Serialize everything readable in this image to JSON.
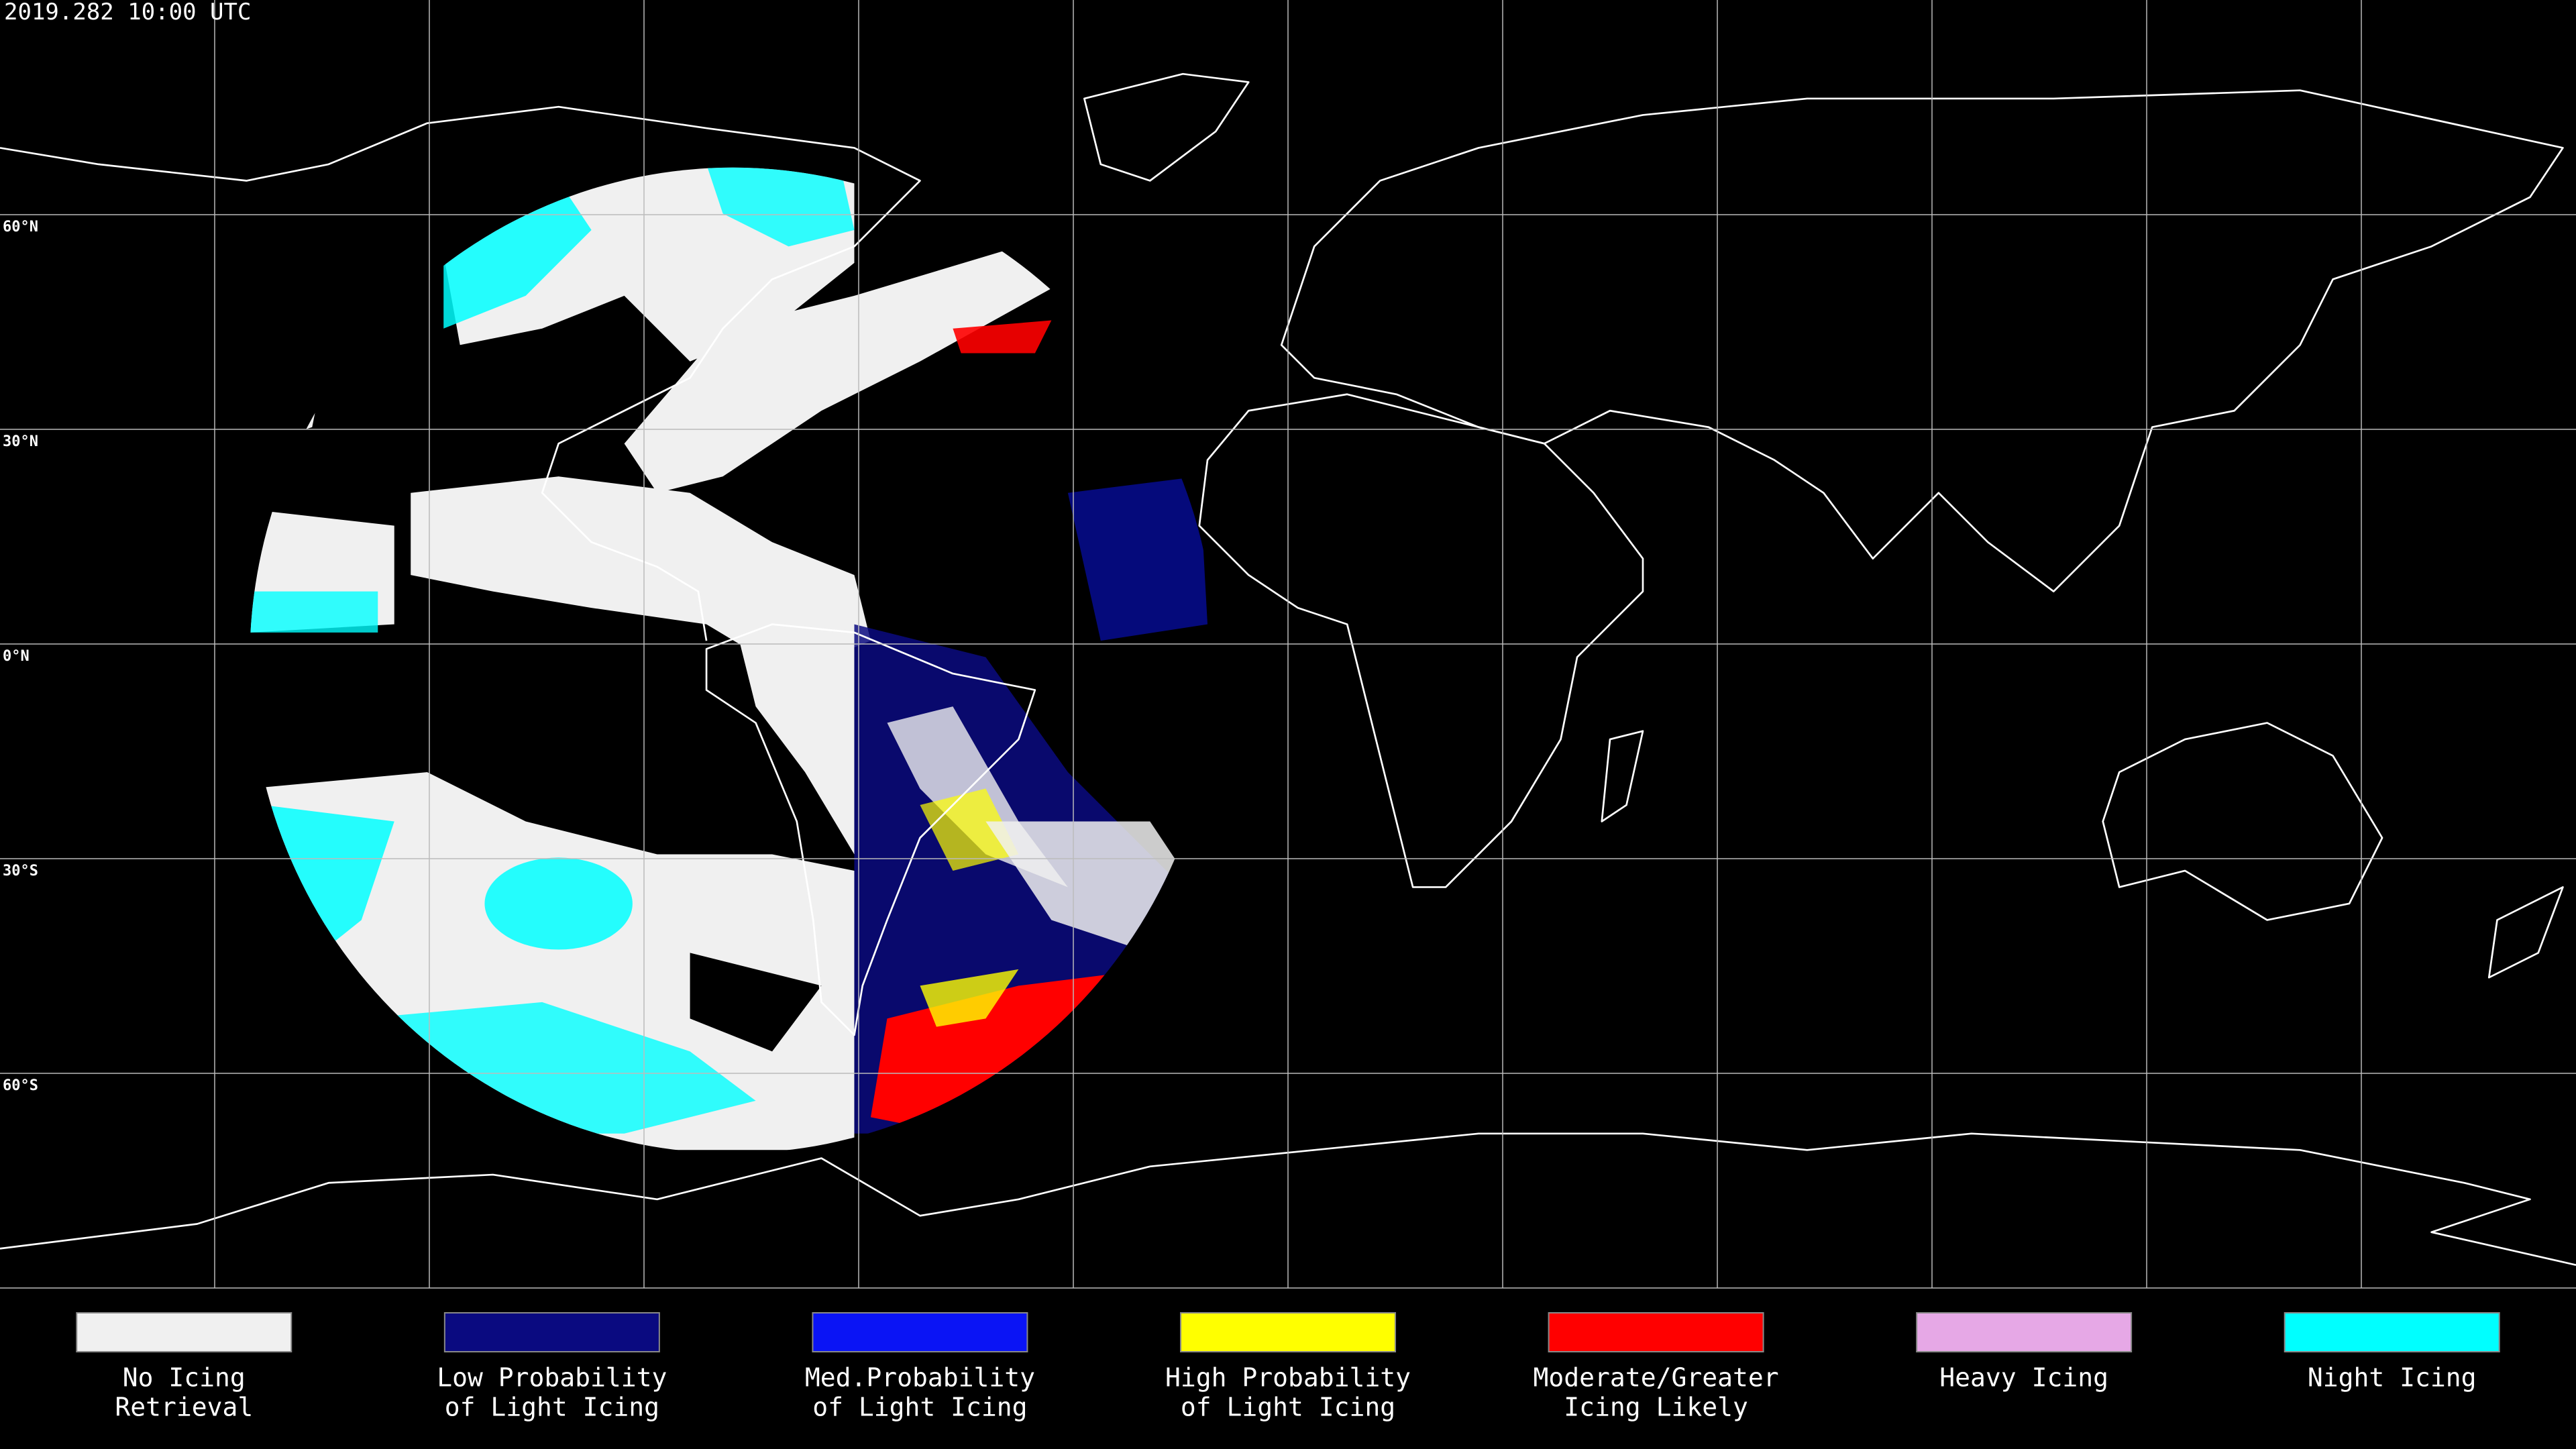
{
  "title": "2019.282 10:00 UTC",
  "map": {
    "lat_lines": [
      {
        "value": 60,
        "label": "60°N"
      },
      {
        "value": 30,
        "label": "30°N"
      },
      {
        "value": 0,
        "label": "0°N"
      },
      {
        "value": -30,
        "label": "30°S"
      },
      {
        "value": -60,
        "label": "60°S"
      }
    ]
  },
  "legend": [
    {
      "label": [
        "No Icing",
        "Retrieval"
      ],
      "color": "#f0f0f0"
    },
    {
      "label": [
        "Low Probability",
        "of Light Icing"
      ],
      "color": "#0a0a80"
    },
    {
      "label": [
        "Med.Probability",
        "of Light Icing"
      ],
      "color": "#0a14f5"
    },
    {
      "label": [
        "High Probability",
        "of Light Icing"
      ],
      "color": "#ffff00"
    },
    {
      "label": [
        "Moderate/Greater",
        "Icing Likely"
      ],
      "color": "#ff0000"
    },
    {
      "label": [
        "Heavy Icing"
      ],
      "color": "#e6a8e6"
    },
    {
      "label": [
        "Night Icing"
      ],
      "color": "#00ffff"
    }
  ]
}
